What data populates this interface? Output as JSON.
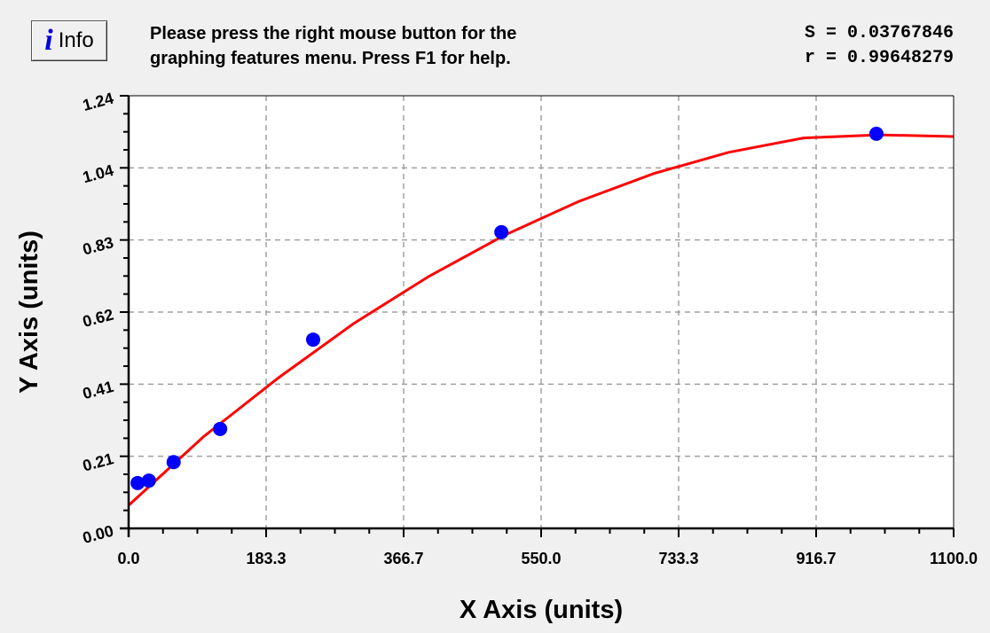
{
  "header": {
    "info_button": {
      "icon": "info-icon",
      "icon_glyph": "i",
      "label": "Info"
    },
    "message_line1": "Please press the right mouse button for the",
    "message_line2": "graphing features menu.  Press F1 for help.",
    "stat_s": "S = 0.03767846",
    "stat_r": "r = 0.99648279"
  },
  "chart_data": {
    "type": "scatter",
    "title": "",
    "xlabel": "X Axis (units)",
    "ylabel": "Y Axis (units)",
    "xlim": [
      0,
      1100
    ],
    "ylim": [
      0,
      1.24
    ],
    "x_ticks": [
      "0.0",
      "183.3",
      "366.7",
      "550.0",
      "733.3",
      "916.7",
      "1100.0"
    ],
    "y_ticks": [
      "0.00",
      "0.21",
      "0.41",
      "0.62",
      "0.83",
      "1.04",
      "1.24"
    ],
    "grid": true,
    "colors": {
      "points": "#0000ff",
      "fit": "#ff0000",
      "grid": "#a0a0a0"
    },
    "series": [
      {
        "kind": "points",
        "x": [
          12,
          27,
          60,
          122,
          246,
          497,
          997
        ],
        "y": [
          0.13,
          0.137,
          0.19,
          0.285,
          0.541,
          0.849,
          1.131
        ]
      },
      {
        "kind": "fit-curve",
        "x": [
          0,
          100,
          200,
          300,
          400,
          500,
          600,
          700,
          800,
          900,
          1000,
          1100
        ],
        "y": [
          0.066,
          0.263,
          0.432,
          0.587,
          0.722,
          0.839,
          0.937,
          1.017,
          1.078,
          1.119,
          1.128,
          1.123
        ]
      }
    ]
  }
}
